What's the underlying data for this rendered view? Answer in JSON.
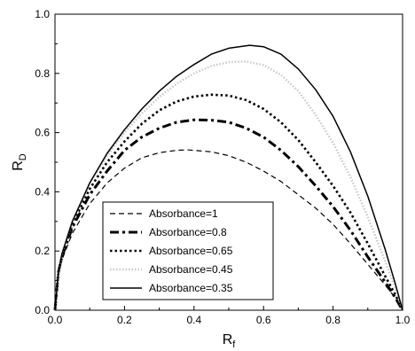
{
  "chart_data": {
    "type": "line",
    "xlabel": "R",
    "xlabel_sub": "f",
    "ylabel": "R",
    "ylabel_sub": "D",
    "xlim": [
      0.0,
      1.0
    ],
    "ylim": [
      0.0,
      1.0
    ],
    "xticks": [
      "0.0",
      "0.2",
      "0.4",
      "0.6",
      "0.8",
      "1.0"
    ],
    "yticks": [
      "0.0",
      "0.2",
      "0.4",
      "0.6",
      "0.8",
      "1.0"
    ],
    "grid": false,
    "legend_position": "bottom-left",
    "series": [
      {
        "name": "Absorbance=1",
        "style": "dashed",
        "x": [
          0,
          0.01,
          0.02,
          0.05,
          0.1,
          0.15,
          0.2,
          0.25,
          0.3,
          0.35,
          0.38,
          0.45,
          0.5,
          0.55,
          0.6,
          0.65,
          0.7,
          0.75,
          0.8,
          0.85,
          0.9,
          0.95,
          0.98,
          1.0
        ],
        "y": [
          0,
          0.12,
          0.17,
          0.26,
          0.36,
          0.43,
          0.48,
          0.515,
          0.532,
          0.54,
          0.542,
          0.535,
          0.522,
          0.5,
          0.47,
          0.435,
          0.39,
          0.345,
          0.29,
          0.225,
          0.155,
          0.085,
          0.04,
          0.0
        ]
      },
      {
        "name": "Absorbance=0.8",
        "style": "dash-dot-thick",
        "x": [
          0,
          0.01,
          0.02,
          0.05,
          0.1,
          0.15,
          0.2,
          0.25,
          0.3,
          0.35,
          0.4,
          0.45,
          0.5,
          0.55,
          0.6,
          0.65,
          0.7,
          0.75,
          0.8,
          0.85,
          0.9,
          0.95,
          0.98,
          1.0
        ],
        "y": [
          0,
          0.13,
          0.18,
          0.28,
          0.39,
          0.47,
          0.54,
          0.585,
          0.615,
          0.635,
          0.643,
          0.642,
          0.635,
          0.615,
          0.585,
          0.54,
          0.485,
          0.42,
          0.35,
          0.27,
          0.18,
          0.095,
          0.04,
          0.0
        ]
      },
      {
        "name": "Absorbance=0.65",
        "style": "dotted-thick",
        "x": [
          0,
          0.01,
          0.02,
          0.05,
          0.1,
          0.15,
          0.2,
          0.25,
          0.3,
          0.35,
          0.4,
          0.45,
          0.5,
          0.55,
          0.6,
          0.65,
          0.7,
          0.75,
          0.8,
          0.85,
          0.9,
          0.95,
          0.98,
          1.0
        ],
        "y": [
          0,
          0.13,
          0.18,
          0.29,
          0.41,
          0.5,
          0.57,
          0.63,
          0.675,
          0.705,
          0.722,
          0.728,
          0.725,
          0.71,
          0.68,
          0.635,
          0.575,
          0.5,
          0.42,
          0.33,
          0.225,
          0.115,
          0.05,
          0.0
        ]
      },
      {
        "name": "Absorbance=0.45",
        "style": "dotted-light",
        "x": [
          0,
          0.01,
          0.02,
          0.05,
          0.1,
          0.15,
          0.2,
          0.25,
          0.3,
          0.35,
          0.4,
          0.45,
          0.5,
          0.55,
          0.6,
          0.65,
          0.7,
          0.75,
          0.8,
          0.85,
          0.9,
          0.95,
          0.98,
          1.0
        ],
        "y": [
          0,
          0.13,
          0.19,
          0.3,
          0.43,
          0.52,
          0.6,
          0.665,
          0.72,
          0.765,
          0.8,
          0.825,
          0.838,
          0.84,
          0.828,
          0.795,
          0.74,
          0.66,
          0.565,
          0.45,
          0.315,
          0.165,
          0.07,
          0.0
        ]
      },
      {
        "name": "Absorbance=0.35",
        "style": "solid",
        "x": [
          0,
          0.01,
          0.02,
          0.05,
          0.1,
          0.15,
          0.2,
          0.25,
          0.3,
          0.35,
          0.4,
          0.45,
          0.5,
          0.56,
          0.6,
          0.65,
          0.7,
          0.75,
          0.8,
          0.85,
          0.9,
          0.95,
          0.98,
          1.0
        ],
        "y": [
          0,
          0.13,
          0.19,
          0.3,
          0.43,
          0.53,
          0.61,
          0.68,
          0.74,
          0.79,
          0.83,
          0.865,
          0.885,
          0.895,
          0.89,
          0.865,
          0.815,
          0.745,
          0.655,
          0.535,
          0.385,
          0.205,
          0.085,
          0.0
        ]
      }
    ]
  }
}
